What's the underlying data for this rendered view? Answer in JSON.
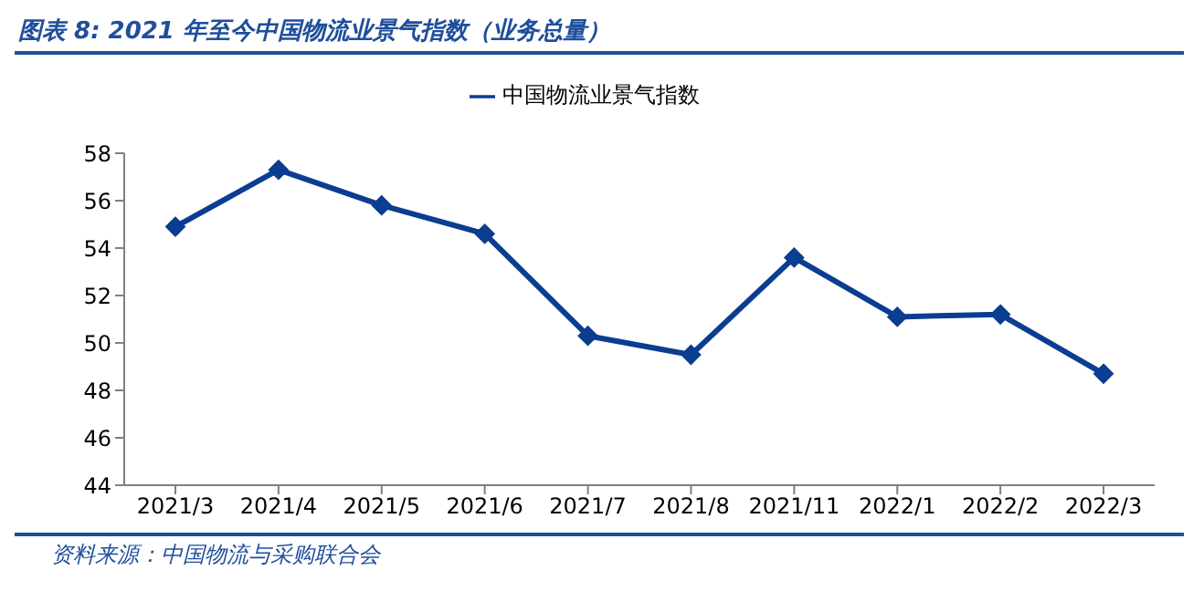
{
  "chart_data": {
    "type": "line",
    "title": "图表 8:  2021 年至今中国物流业景气指数（业务总量）",
    "annotations": [
      "资料来源：中国物流与采购联合会"
    ],
    "categories": [
      "2021/3",
      "2021/4",
      "2021/5",
      "2021/6",
      "2021/7",
      "2021/8",
      "2021/11",
      "2022/1",
      "2022/2",
      "2022/3"
    ],
    "series": [
      {
        "name": "中国物流业景气指数",
        "color": "#0b3d91",
        "values": [
          54.9,
          57.3,
          55.8,
          54.6,
          50.3,
          49.5,
          53.6,
          51.1,
          51.2,
          48.7
        ]
      }
    ],
    "ylim": [
      44,
      58
    ],
    "yticks": [
      44,
      46,
      48,
      50,
      52,
      54,
      56,
      58
    ],
    "grid": false,
    "legend": "top",
    "marker": "diamond",
    "line_style": "solid"
  }
}
